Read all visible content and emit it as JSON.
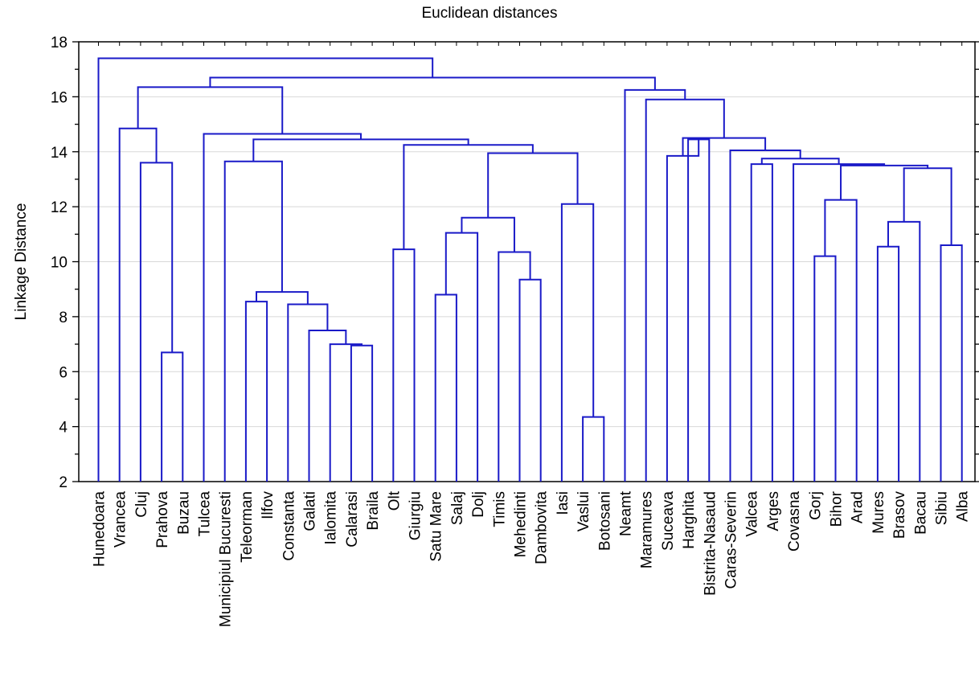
{
  "chart_data": {
    "type": "dendrogram",
    "title": "Euclidean distances",
    "ylabel": "Linkage Distance",
    "ylim": [
      2,
      18
    ],
    "yticks": [
      2,
      4,
      6,
      8,
      10,
      12,
      14,
      16,
      18
    ],
    "grid": "horizontal",
    "line_color": "#1a1ac8",
    "leaves": [
      "Hunedoara",
      "Vrancea",
      "Cluj",
      "Prahova",
      "Buzau",
      "Tulcea",
      "Municipiul Bucuresti",
      "Teleorman",
      "Ilfov",
      "Constanta",
      "Galati",
      "Ialomita",
      "Calarasi",
      "Braila",
      "Olt",
      "Giurgiu",
      "Satu Mare",
      "Salaj",
      "Dolj",
      "Timis",
      "Mehedinti",
      "Dambovita",
      "Iasi",
      "Vaslui",
      "Botosani",
      "Neamt",
      "Maramures",
      "Suceava",
      "Harghita",
      "Bistrita-Nasaud",
      "Caras-Severin",
      "Valcea",
      "Arges",
      "Covasna",
      "Gorj",
      "Bihor",
      "Arad",
      "Mures",
      "Brasov",
      "Bacau",
      "Sibiu",
      "Alba"
    ],
    "merges": [
      {
        "a": "Prahova",
        "b": "Buzau",
        "height": 6.7
      },
      {
        "a": "Calarasi",
        "b": "Braila",
        "height": 6.95
      },
      {
        "a": "Ialomita",
        "b": "m2",
        "height": 7.0
      },
      {
        "a": "Galati",
        "b": "m3",
        "height": 7.5
      },
      {
        "a": "Constanta",
        "b": "m4",
        "height": 8.45
      },
      {
        "a": "Teleorman",
        "b": "Ilfov",
        "height": 8.55
      },
      {
        "a": "m6",
        "b": "m5",
        "height": 8.9
      },
      {
        "a": "Municipiul Bucuresti",
        "b": "m7",
        "height": 13.65
      },
      {
        "a": "Vaslui",
        "b": "Botosani",
        "height": 4.35
      },
      {
        "a": "Iasi",
        "b": "m9",
        "height": 12.1
      },
      {
        "a": "Satu Mare",
        "b": "Salaj",
        "height": 8.8
      },
      {
        "a": "m11",
        "b": "Dolj",
        "height": 11.05
      },
      {
        "a": "Mehedinti",
        "b": "Dambovita",
        "height": 9.35
      },
      {
        "a": "Timis",
        "b": "m13",
        "height": 10.35
      },
      {
        "a": "m12",
        "b": "m14",
        "height": 11.6
      },
      {
        "a": "m15",
        "b": "m10",
        "height": 13.95
      },
      {
        "a": "Olt",
        "b": "Giurgiu",
        "height": 10.45
      },
      {
        "a": "m17",
        "b": "m16",
        "height": 14.25
      },
      {
        "a": "m8",
        "b": "m18",
        "height": 14.45
      },
      {
        "a": "Tulcea",
        "b": "m19",
        "height": 14.65
      },
      {
        "a": "Cluj",
        "b": "m1",
        "height": 13.6
      },
      {
        "a": "Vrancea",
        "b": "m21",
        "height": 14.85
      },
      {
        "a": "m22",
        "b": "m20",
        "height": 16.35
      },
      {
        "a": "Gorj",
        "b": "Bihor",
        "height": 10.2
      },
      {
        "a": "m24",
        "b": "Arad",
        "height": 12.25
      },
      {
        "a": "Mures",
        "b": "Brasov",
        "height": 10.55
      },
      {
        "a": "m26",
        "b": "Bacau",
        "height": 11.45
      },
      {
        "a": "Sibiu",
        "b": "Alba",
        "height": 10.6
      },
      {
        "a": "m27",
        "b": "m28",
        "height": 13.4
      },
      {
        "a": "m25",
        "b": "m29",
        "height": 13.5
      },
      {
        "a": "Covasna",
        "b": "m30",
        "height": 13.55
      },
      {
        "a": "Valcea",
        "b": "Arges",
        "height": 13.55
      },
      {
        "a": "m32",
        "b": "m31",
        "height": 13.75
      },
      {
        "a": "m33",
        "b": "Caras-Severin",
        "height": 14.05
      },
      {
        "a": "Harghita",
        "b": "Bistrita-Nasaud",
        "height": 14.45
      },
      {
        "a": "Suceava",
        "b": "m35",
        "height": 13.85
      },
      {
        "a": "m36",
        "b": "m34",
        "height": 14.5
      },
      {
        "a": "Maramures",
        "b": "m37",
        "height": 15.9
      },
      {
        "a": "Neamt",
        "b": "m38",
        "height": 16.25
      },
      {
        "a": "m23",
        "b": "m39",
        "height": 16.7
      },
      {
        "a": "Hunedoara",
        "b": "m40",
        "height": 17.4
      }
    ]
  }
}
